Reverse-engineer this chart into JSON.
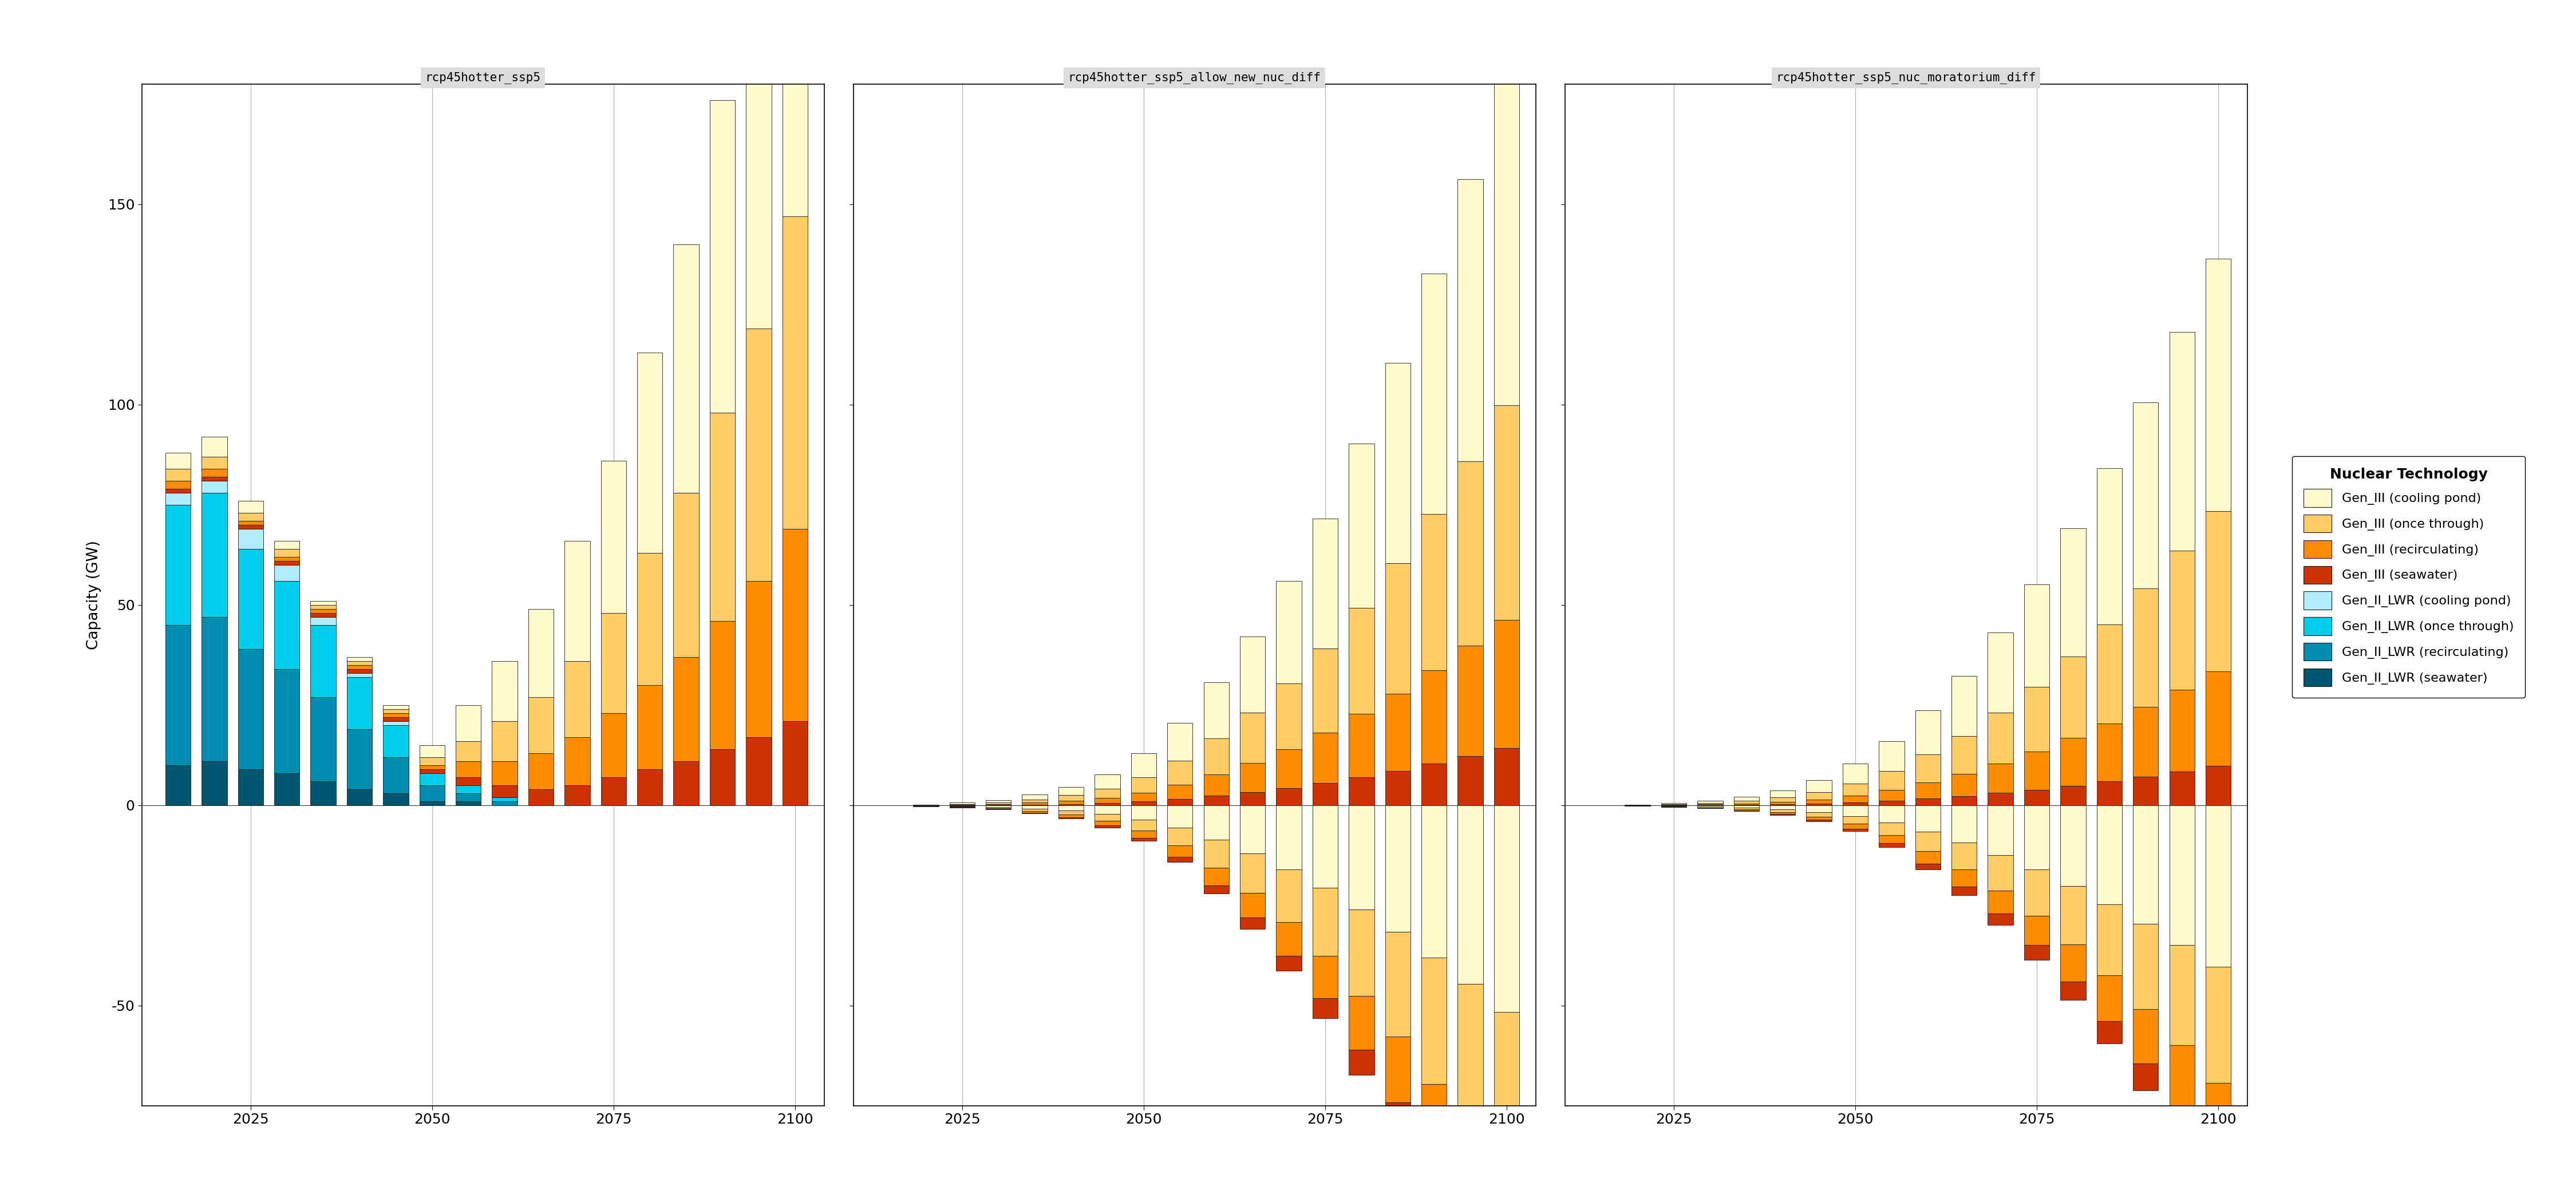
{
  "panel_titles": [
    "rcp45hotter_ssp5",
    "rcp45hotter_ssp5_allow_new_nuc_diff",
    "rcp45hotter_ssp5_nuc_moratorium_diff"
  ],
  "years": [
    2015,
    2020,
    2025,
    2030,
    2035,
    2040,
    2045,
    2050,
    2055,
    2060,
    2065,
    2070,
    2075,
    2080,
    2085,
    2090,
    2095,
    2100
  ],
  "technologies": [
    "Gen_III (cooling pond)",
    "Gen_III (once through)",
    "Gen_III (recirculating)",
    "Gen_III (seawater)",
    "Gen_II_LWR (cooling pond)",
    "Gen_II_LWR (once through)",
    "Gen_II_LWR (recirculating)",
    "Gen_II_LWR (seawater)"
  ],
  "colors": [
    "#FFFACD",
    "#FFCC66",
    "#FF8C00",
    "#CC3300",
    "#B0ECFF",
    "#00CCEE",
    "#008BB0",
    "#005570"
  ],
  "panel1": {
    "Gen_III (cooling pond)": [
      4,
      5,
      3,
      2,
      1,
      1,
      1,
      3,
      9,
      15,
      22,
      30,
      38,
      50,
      62,
      78,
      95,
      118
    ],
    "Gen_III (once through)": [
      3,
      3,
      2,
      2,
      1,
      1,
      1,
      2,
      5,
      10,
      14,
      19,
      25,
      33,
      41,
      52,
      63,
      78
    ],
    "Gen_III (recirculating)": [
      2,
      2,
      1,
      1,
      1,
      1,
      1,
      1,
      4,
      6,
      9,
      12,
      16,
      21,
      26,
      32,
      39,
      48
    ],
    "Gen_III (seawater)": [
      1,
      1,
      1,
      1,
      1,
      1,
      1,
      1,
      2,
      3,
      4,
      5,
      7,
      9,
      11,
      14,
      17,
      21
    ],
    "Gen_II_LWR (cooling pond)": [
      3,
      3,
      5,
      4,
      2,
      1,
      1,
      0,
      0,
      0,
      0,
      0,
      0,
      0,
      0,
      0,
      0,
      0
    ],
    "Gen_II_LWR (once through)": [
      30,
      31,
      25,
      22,
      18,
      13,
      8,
      3,
      2,
      1,
      0,
      0,
      0,
      0,
      0,
      0,
      0,
      0
    ],
    "Gen_II_LWR (recirculating)": [
      35,
      36,
      30,
      26,
      21,
      15,
      9,
      4,
      2,
      1,
      0,
      0,
      0,
      0,
      0,
      0,
      0,
      0
    ],
    "Gen_II_LWR (seawater)": [
      10,
      11,
      9,
      8,
      6,
      4,
      3,
      1,
      1,
      0,
      0,
      0,
      0,
      0,
      0,
      0,
      0,
      0
    ]
  },
  "panel2": {
    "Gen_III (cooling pond)": [
      0,
      0.1,
      0.3,
      0.6,
      1.2,
      2.0,
      3.5,
      6.0,
      9.5,
      14.0,
      19.0,
      25.5,
      32.5,
      41.0,
      50.0,
      60.0,
      70.5,
      82.0
    ],
    "Gen_III (once through)": [
      0,
      0.05,
      0.2,
      0.4,
      0.8,
      1.4,
      2.3,
      3.8,
      6.0,
      9.0,
      12.5,
      16.5,
      21.0,
      26.5,
      32.5,
      39.0,
      46.0,
      53.5
    ],
    "Gen_III (recirculating)": [
      0,
      0.03,
      0.1,
      0.2,
      0.45,
      0.8,
      1.3,
      2.2,
      3.5,
      5.3,
      7.3,
      9.7,
      12.5,
      15.8,
      19.3,
      23.3,
      27.5,
      32.0
    ],
    "Gen_III (seawater)": [
      0,
      0,
      0.05,
      0.1,
      0.2,
      0.35,
      0.6,
      1.0,
      1.6,
      2.4,
      3.3,
      4.3,
      5.6,
      7.0,
      8.6,
      10.4,
      12.3,
      14.3
    ],
    "Gen_II_LWR (cooling pond)": [
      0,
      0,
      0,
      0,
      0,
      0,
      0,
      0,
      0,
      0,
      0,
      0,
      0,
      0,
      0,
      0,
      0,
      0
    ],
    "Gen_II_LWR (once through)": [
      0,
      0,
      0,
      0,
      0,
      0,
      0,
      0,
      0,
      0,
      0,
      0,
      0,
      0,
      0,
      0,
      0,
      0
    ],
    "Gen_II_LWR (recirculating)": [
      0,
      0,
      0,
      0,
      0,
      0,
      0,
      0,
      0,
      0,
      0,
      0,
      0,
      0,
      0,
      0,
      0,
      0
    ],
    "Gen_II_LWR (seawater)": [
      0,
      0,
      0,
      0,
      0,
      0,
      0,
      0,
      0,
      0,
      0,
      0,
      0,
      0,
      0,
      0,
      0,
      0
    ],
    "Gen_III (seawater)_neg": [
      0,
      -0.02,
      -0.05,
      -0.1,
      -0.18,
      -0.3,
      -0.5,
      -0.8,
      -1.3,
      -2.0,
      -2.8,
      -3.8,
      -5.0,
      -6.3,
      -7.8,
      -9.5,
      -11.2,
      -13.0
    ],
    "Gen_III (recirculating)_neg": [
      0,
      -0.05,
      -0.1,
      -0.2,
      -0.4,
      -0.65,
      -1.1,
      -1.8,
      -2.9,
      -4.5,
      -6.2,
      -8.3,
      -10.7,
      -13.5,
      -16.5,
      -20.0,
      -23.5,
      -27.2
    ],
    "Gen_III (once through)_neg": [
      0,
      -0.07,
      -0.15,
      -0.3,
      -0.6,
      -1.0,
      -1.7,
      -2.8,
      -4.5,
      -7.0,
      -9.8,
      -13.2,
      -17.0,
      -21.5,
      -26.2,
      -31.5,
      -37.0,
      -43.0
    ],
    "Gen_III (cooling pond)_neg": [
      0,
      -0.1,
      -0.2,
      -0.4,
      -0.8,
      -1.3,
      -2.2,
      -3.5,
      -5.5,
      -8.5,
      -12.0,
      -16.0,
      -20.5,
      -26.0,
      -31.5,
      -38.0,
      -44.5,
      -51.5
    ]
  },
  "panel3": {
    "Gen_III (cooling pond)": [
      0,
      0.1,
      0.3,
      0.6,
      1.0,
      1.8,
      3.0,
      5.0,
      7.5,
      11.0,
      15.0,
      20.0,
      25.5,
      32.0,
      39.0,
      46.5,
      54.5,
      63.0
    ],
    "Gen_III (once through)": [
      0,
      0.05,
      0.15,
      0.3,
      0.6,
      1.1,
      1.8,
      3.0,
      4.7,
      7.0,
      9.5,
      12.7,
      16.2,
      20.3,
      24.7,
      29.5,
      34.7,
      40.0
    ],
    "Gen_III (recirculating)": [
      0,
      0.03,
      0.08,
      0.18,
      0.35,
      0.6,
      1.0,
      1.7,
      2.7,
      4.0,
      5.5,
      7.4,
      9.5,
      11.9,
      14.5,
      17.4,
      20.4,
      23.6
    ],
    "Gen_III (seawater)": [
      0,
      0,
      0.04,
      0.08,
      0.15,
      0.27,
      0.45,
      0.75,
      1.15,
      1.7,
      2.3,
      3.1,
      3.9,
      4.9,
      6.0,
      7.2,
      8.5,
      9.8
    ],
    "Gen_II_LWR (cooling pond)": [
      0,
      0,
      0,
      0,
      0,
      0,
      0,
      0,
      0,
      0,
      0,
      0,
      0,
      0,
      0,
      0,
      0,
      0
    ],
    "Gen_II_LWR (once through)": [
      0,
      0,
      0,
      0,
      0,
      0,
      0,
      0,
      0,
      0,
      0,
      0,
      0,
      0,
      0,
      0,
      0,
      0
    ],
    "Gen_II_LWR (recirculating)": [
      0,
      0,
      0,
      0,
      0,
      0,
      0,
      0,
      0,
      0,
      0,
      0,
      0,
      0,
      0,
      0,
      0,
      0
    ],
    "Gen_II_LWR (seawater)": [
      0,
      0,
      0,
      0,
      0,
      0,
      0,
      0,
      0,
      0,
      0,
      0,
      0,
      0,
      0,
      0,
      0,
      0
    ],
    "Gen_III (seawater)_neg": [
      0,
      -0.02,
      -0.04,
      -0.08,
      -0.14,
      -0.23,
      -0.38,
      -0.62,
      -1.0,
      -1.5,
      -2.1,
      -2.8,
      -3.6,
      -4.6,
      -5.6,
      -6.7,
      -7.9,
      -9.2
    ],
    "Gen_III (recirculating)_neg": [
      0,
      -0.04,
      -0.08,
      -0.15,
      -0.28,
      -0.47,
      -0.77,
      -1.25,
      -2.0,
      -3.1,
      -4.3,
      -5.7,
      -7.4,
      -9.3,
      -11.4,
      -13.6,
      -16.1,
      -18.6
    ],
    "Gen_III (once through)_neg": [
      0,
      -0.05,
      -0.12,
      -0.22,
      -0.42,
      -0.72,
      -1.18,
      -1.9,
      -3.1,
      -4.8,
      -6.7,
      -8.9,
      -11.5,
      -14.5,
      -17.7,
      -21.2,
      -25.0,
      -29.0
    ],
    "Gen_III (cooling pond)_neg": [
      0,
      -0.08,
      -0.17,
      -0.32,
      -0.6,
      -1.0,
      -1.65,
      -2.7,
      -4.3,
      -6.6,
      -9.3,
      -12.4,
      -16.0,
      -20.2,
      -24.7,
      -29.6,
      -34.8,
      -40.3
    ]
  },
  "ylim": [
    -75,
    180
  ],
  "yticks": [
    -50,
    0,
    50,
    100,
    150
  ],
  "ylabel": "Capacity (GW)",
  "background_color": "#FFFFFF",
  "panel_bg": "#FFFFFF",
  "header_bg": "#DCDCDC",
  "grid_color": "#B0B0B0",
  "bar_width": 3.5,
  "bar_edge_color": "#1a1a1a",
  "legend_title": "Nuclear Technology"
}
